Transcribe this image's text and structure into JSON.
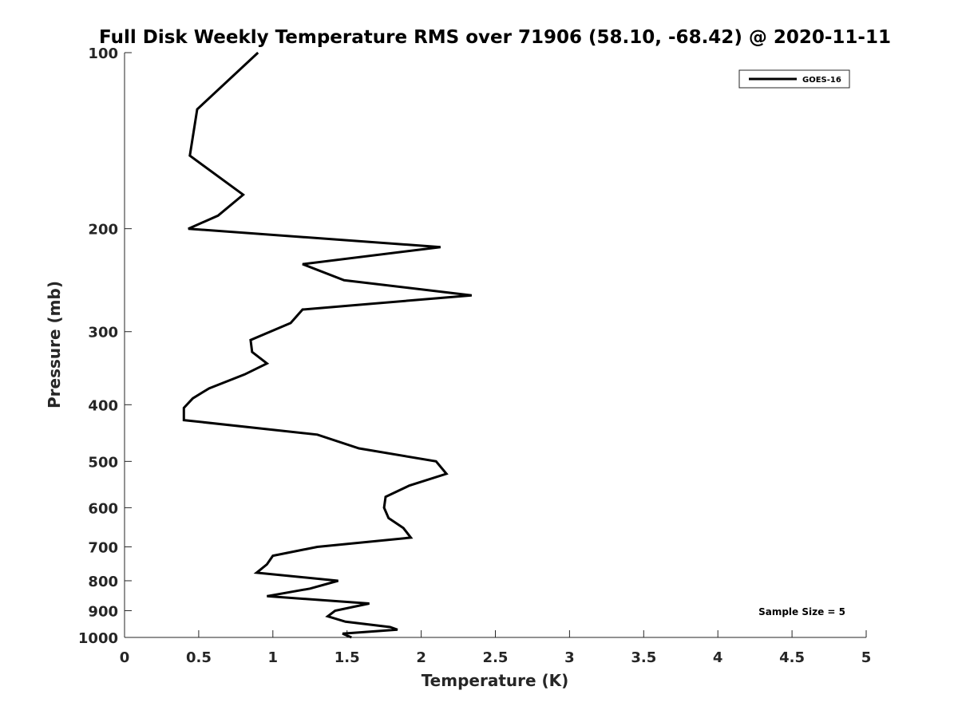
{
  "chart_data": {
    "type": "line",
    "title": "Full Disk Weekly Temperature RMS over 71906 (58.10, -68.42) @ 2020-11-11",
    "xlabel": "Temperature (K)",
    "ylabel": "Pressure (mb)",
    "xlim": [
      0,
      5
    ],
    "ylim": [
      100,
      1000
    ],
    "y_scale": "log",
    "y_reversed": true,
    "x_ticks": [
      "0",
      "0.5",
      "1",
      "1.5",
      "2",
      "2.5",
      "3",
      "3.5",
      "4",
      "4.5",
      "5"
    ],
    "y_ticks": [
      "100",
      "200",
      "300",
      "400",
      "500",
      "600",
      "700",
      "800",
      "900",
      "1000"
    ],
    "grid": false,
    "legend_position": "top-right",
    "series": [
      {
        "name": "GOES-16",
        "color": "#000000",
        "points": [
          [
            0.9,
            100
          ],
          [
            0.49,
            125
          ],
          [
            0.44,
            150
          ],
          [
            0.8,
            175
          ],
          [
            0.63,
            190
          ],
          [
            0.43,
            200
          ],
          [
            2.13,
            215
          ],
          [
            1.2,
            230
          ],
          [
            1.48,
            245
          ],
          [
            2.34,
            260
          ],
          [
            1.2,
            275
          ],
          [
            1.12,
            290
          ],
          [
            0.85,
            310
          ],
          [
            0.86,
            325
          ],
          [
            0.96,
            340
          ],
          [
            0.81,
            355
          ],
          [
            0.57,
            375
          ],
          [
            0.46,
            390
          ],
          [
            0.4,
            405
          ],
          [
            0.4,
            425
          ],
          [
            1.3,
            450
          ],
          [
            1.58,
            475
          ],
          [
            2.1,
            500
          ],
          [
            2.17,
            525
          ],
          [
            1.92,
            550
          ],
          [
            1.76,
            575
          ],
          [
            1.75,
            600
          ],
          [
            1.78,
            625
          ],
          [
            1.88,
            650
          ],
          [
            1.93,
            675
          ],
          [
            1.3,
            700
          ],
          [
            1.0,
            725
          ],
          [
            0.96,
            750
          ],
          [
            0.89,
            775
          ],
          [
            1.44,
            800
          ],
          [
            1.25,
            825
          ],
          [
            0.96,
            850
          ],
          [
            1.65,
            875
          ],
          [
            1.42,
            900
          ],
          [
            1.37,
            920
          ],
          [
            1.49,
            940
          ],
          [
            1.79,
            960
          ],
          [
            1.84,
            970
          ],
          [
            1.47,
            985
          ],
          [
            1.53,
            1000
          ]
        ]
      }
    ],
    "annotations": [
      "Sample Size = 5"
    ]
  }
}
